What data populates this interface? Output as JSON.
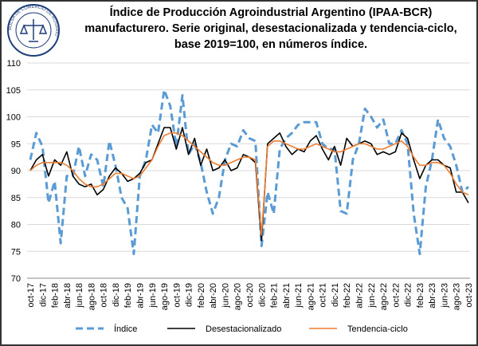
{
  "chart_data": {
    "type": "line",
    "title": [
      "Índice de Producción Agroindustrial Argentino (IPAA-BCR)",
      "manufacturero. Serie original, desestacionalizada y tendencia-ciclo,",
      "base 2019=100, en números índice."
    ],
    "logo_text": "BOLSA DE COMERCIO DE ROSARIO",
    "categories": [
      "oct-17",
      null,
      "dic-17",
      null,
      "feb-18",
      null,
      "abr-18",
      null,
      "jun-18",
      null,
      "ago-18",
      null,
      "oct-18",
      null,
      "dic-18",
      null,
      "feb-19",
      null,
      "abr-19",
      null,
      "jun-19",
      null,
      "ago-19",
      null,
      "oct-19",
      null,
      "dic-19",
      null,
      "feb-20",
      null,
      "abr-20",
      null,
      "jun-20",
      null,
      "ago-20",
      null,
      "oct-20",
      null,
      "dic-20",
      null,
      "feb-21",
      null,
      "abr-21",
      null,
      "jun-21",
      null,
      "ago-21",
      null,
      "oct-21",
      null,
      "dic-21",
      null,
      "feb-22",
      null,
      "abr-22",
      null,
      "jun-22",
      null,
      "ago-22",
      null,
      "oct-22",
      null,
      "dic-22",
      null,
      "feb-23",
      null,
      "abr-23",
      null,
      "jun-23",
      null,
      "ago-23",
      null,
      "oct-23"
    ],
    "series": [
      {
        "name": "Índice",
        "color": "#5b9bd5",
        "dashed": true,
        "values": [
          92,
          97,
          94.5,
          84,
          88,
          76.5,
          89,
          89,
          94.5,
          89,
          93,
          92,
          87,
          95.5,
          91,
          85,
          83,
          74.5,
          89,
          92,
          98.5,
          97,
          105,
          102,
          94.5,
          104,
          93,
          95,
          91.5,
          86,
          82,
          85,
          92,
          95,
          94.5,
          97.5,
          96,
          95.5,
          76,
          86,
          82,
          94,
          96,
          97,
          98.5,
          99,
          99,
          99,
          95,
          94,
          94,
          82.5,
          82,
          92,
          95,
          101.5,
          100,
          98,
          99.5,
          95,
          95,
          97.5,
          95,
          82,
          74.5,
          87,
          92,
          99.5,
          96,
          94.5,
          91,
          86,
          87
        ]
      },
      {
        "name": "Desestacionalizado",
        "color": "#000000",
        "dashed": false,
        "values": [
          90,
          92,
          93,
          89,
          92,
          91,
          93.5,
          89,
          87.5,
          87,
          87.5,
          85.5,
          86.5,
          89,
          90.5,
          89.5,
          88,
          88.5,
          89.5,
          91.5,
          92,
          95,
          98,
          98,
          94,
          98,
          93,
          96,
          91,
          94,
          90,
          90.5,
          92,
          90,
          90.5,
          93,
          92.5,
          91.5,
          77,
          95,
          96,
          97,
          94.5,
          93,
          94,
          93.5,
          95.5,
          96.5,
          94,
          92,
          94.5,
          91,
          96,
          94.5,
          95,
          95.5,
          95,
          93,
          93.5,
          93,
          93.5,
          97,
          96,
          92,
          88.5,
          91,
          92,
          92,
          91,
          90.5,
          86,
          86,
          84
        ]
      },
      {
        "name": "Tendencia-ciclo",
        "color": "#ed7d31",
        "dashed": false,
        "values": [
          90,
          91,
          91.5,
          91.5,
          91.5,
          91.5,
          91,
          90,
          88.5,
          87.5,
          87,
          87,
          87.5,
          88.5,
          89.5,
          89.5,
          89,
          88.5,
          89,
          90.5,
          92,
          94.5,
          96.5,
          97,
          97,
          96.5,
          95.5,
          94.5,
          93.5,
          92.5,
          91.5,
          91,
          91,
          91.5,
          92,
          92.5,
          92.5,
          92,
          78,
          94.5,
          95.5,
          95.5,
          95,
          94.5,
          94,
          94,
          94.5,
          95,
          94.5,
          94,
          93.5,
          93.5,
          94,
          94.5,
          95,
          95,
          94.5,
          94,
          94,
          94.5,
          95,
          95.5,
          94.5,
          92.5,
          91,
          91,
          91.5,
          91.5,
          91,
          89.5,
          87.5,
          86,
          85.5
        ]
      }
    ],
    "ylim": [
      70,
      110
    ],
    "yticks": [
      70,
      75,
      80,
      85,
      90,
      95,
      100,
      105,
      110
    ],
    "grid": true,
    "legend": "bottom"
  }
}
